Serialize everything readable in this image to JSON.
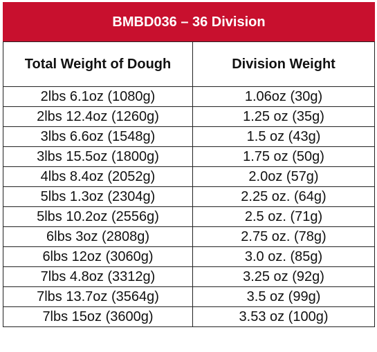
{
  "table": {
    "title": "BMBD036 – 36 Division",
    "title_color": "#c8102e",
    "headers": [
      "Total Weight of Dough",
      "Division Weight"
    ],
    "rows": [
      [
        "2lbs 6.1oz (1080g)",
        "1.06oz (30g)"
      ],
      [
        "2lbs 12.4oz (1260g)",
        "1.25 oz (35g)"
      ],
      [
        "3lbs 6.6oz (1548g)",
        "1.5 oz (43g)"
      ],
      [
        "3lbs 15.5oz (1800g)",
        "1.75 oz (50g)"
      ],
      [
        "4lbs 8.4oz (2052g)",
        "2.0oz (57g)"
      ],
      [
        "5lbs 1.3oz (2304g)",
        "2.25 oz. (64g)"
      ],
      [
        "5lbs 10.2oz (2556g)",
        "2.5 oz. (71g)"
      ],
      [
        "6lbs 3oz (2808g)",
        "2.75 oz. (78g)"
      ],
      [
        "6lbs 12oz (3060g)",
        "3.0 oz. (85g)"
      ],
      [
        "7lbs 4.8oz (3312g)",
        "3.25 oz (92g)"
      ],
      [
        "7lbs 13.7oz (3564g)",
        "3.5 oz (99g)"
      ],
      [
        "7lbs 15oz (3600g)",
        "3.53 oz (100g)"
      ]
    ]
  }
}
